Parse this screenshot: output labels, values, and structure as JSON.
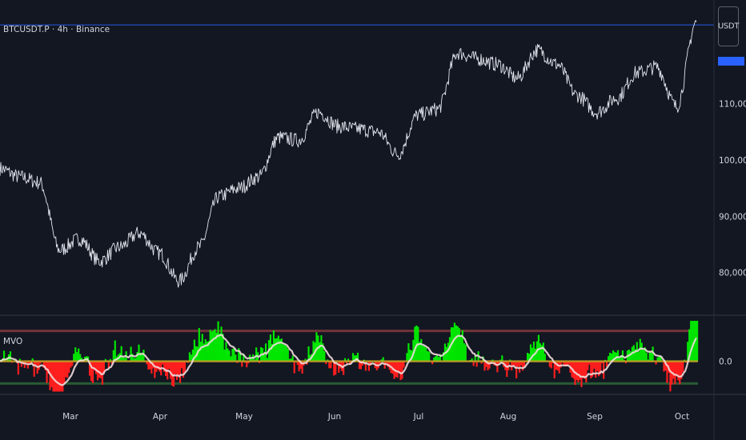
{
  "header": {
    "symbol_title": "BTCUSDT.P · 4h · Binance",
    "unit": "USDT"
  },
  "indicator": {
    "name": "MVO"
  },
  "colors": {
    "background": "#131722",
    "price_line": "#e0e3eb",
    "price_level_line": "#2962ff",
    "positive": "#00e600",
    "negative": "#ff1e1e",
    "signal": "#f0dcdc",
    "upper_band": "#8a3a40",
    "lower_band": "#2e6b3a",
    "zero_band": "#c9a227"
  },
  "chart_data": [
    {
      "type": "line",
      "series": [
        {
          "name": "BTCUSDT.P",
          "x": [
            "Feb 3",
            "Feb 10",
            "Feb 17",
            "Feb 24",
            "Mar 3",
            "Mar 10",
            "Mar 17",
            "Mar 24",
            "Mar 31",
            "Apr 7",
            "Apr 14",
            "Apr 21",
            "Apr 28",
            "May 5",
            "May 12",
            "May 19",
            "May 26",
            "Jun 2",
            "Jun 9",
            "Jun 16",
            "Jun 23",
            "Jun 30",
            "Jul 7",
            "Jul 14",
            "Jul 21",
            "Jul 28",
            "Aug 4",
            "Aug 11",
            "Aug 18",
            "Aug 25",
            "Sep 1",
            "Sep 8",
            "Sep 15",
            "Sep 22",
            "Sep 29",
            "Oct 6"
          ],
          "values": [
            98500,
            97000,
            96000,
            84000,
            86000,
            82000,
            84500,
            87000,
            83500,
            78500,
            84500,
            93500,
            95000,
            97000,
            104000,
            103500,
            108500,
            106000,
            105500,
            105000,
            101000,
            108000,
            109000,
            119000,
            118000,
            117000,
            114500,
            119500,
            117000,
            111500,
            108500,
            111000,
            115500,
            116500,
            109500,
            124500
          ]
        }
      ],
      "ylim": [
        73000,
        127000
      ],
      "yticks": [
        80000,
        90000,
        100000,
        110000
      ],
      "ytick_labels": [
        "80,000.0",
        "90,000.0",
        "100,000.0",
        "110,000.0"
      ],
      "xticks": [
        "Mar",
        "Apr",
        "May",
        "Jun",
        "Jul",
        "Aug",
        "Sep",
        "Oct"
      ],
      "reference_line": 124000,
      "grid": false
    },
    {
      "type": "bar",
      "name": "MVO",
      "ylim": [
        -1.6,
        2.2
      ],
      "yticks": [
        0.0
      ],
      "ytick_labels": [
        "0.0"
      ],
      "upper_band": 1.5,
      "lower_band": -1.1,
      "zero_band": 0.0
    }
  ]
}
